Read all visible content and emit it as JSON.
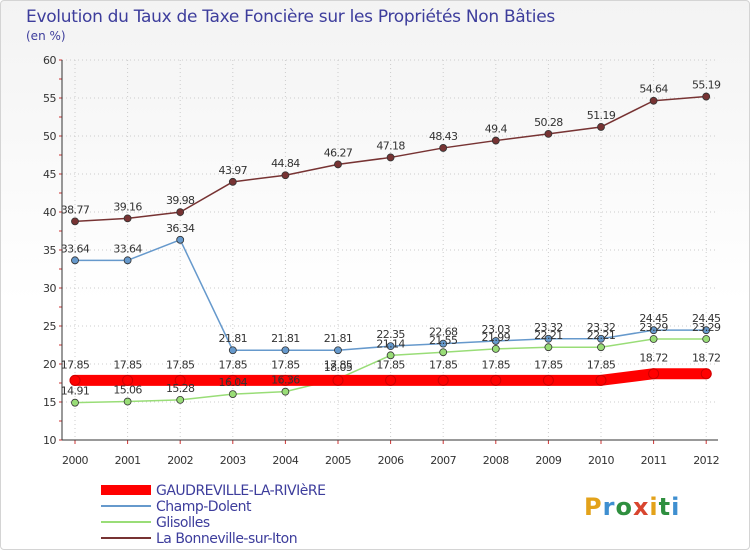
{
  "chart_data": {
    "type": "line",
    "title": "Evolution du Taux de Taxe Foncière sur les Propriétés Non Bâties",
    "ylabel": "(en %)",
    "xlabel": "",
    "ylim": [
      10,
      60
    ],
    "yticks": [
      "10",
      "15",
      "20",
      "25",
      "30",
      "35",
      "40",
      "45",
      "50",
      "55",
      "60"
    ],
    "categories": [
      "2000",
      "2001",
      "2002",
      "2003",
      "2004",
      "2005",
      "2006",
      "2007",
      "2008",
      "2009",
      "2010",
      "2011",
      "2012"
    ],
    "series": [
      {
        "name": "GAUDREVILLE-LA-RIVIèRE",
        "color": "#ff0000",
        "values": [
          17.85,
          17.85,
          17.85,
          17.85,
          17.85,
          17.85,
          17.85,
          17.85,
          17.85,
          17.85,
          17.85,
          18.72,
          18.72
        ],
        "labels": [
          "17.85",
          "17.85",
          "17.85",
          "17.85",
          "17.85",
          "17.85",
          "17.85",
          "17.85",
          "17.85",
          "17.85",
          "17.85",
          "18.72",
          "18.72"
        ]
      },
      {
        "name": "Champ-Dolent",
        "color": "#6699cc",
        "values": [
          33.64,
          33.64,
          36.34,
          21.81,
          21.81,
          21.81,
          22.35,
          22.68,
          23.03,
          23.32,
          23.32,
          24.45,
          24.45
        ],
        "labels": [
          "33.64",
          "33.64",
          "36.34",
          "21.81",
          "21.81",
          "21.81",
          "22.35",
          "22.68",
          "23.03",
          "23.32",
          "23.32",
          "24.45",
          "24.45"
        ]
      },
      {
        "name": "Glisolles",
        "color": "#99dd77",
        "values": [
          14.91,
          15.06,
          15.28,
          16.04,
          16.36,
          18.05,
          21.14,
          21.55,
          21.99,
          22.21,
          22.21,
          23.29,
          23.29
        ],
        "labels": [
          "14.91",
          "15.06",
          "15.28",
          "16.04",
          "16.36",
          "18.05",
          "21.14",
          "21.55",
          "21.99",
          "22.21",
          "22.21",
          "23.29",
          "23.29"
        ]
      },
      {
        "name": "La Bonneville-sur-Iton",
        "color": "#773333",
        "values": [
          38.77,
          39.16,
          39.98,
          43.97,
          44.84,
          46.27,
          47.18,
          48.43,
          49.4,
          50.28,
          51.19,
          54.64,
          55.19
        ],
        "labels": [
          "38.77",
          "39.16",
          "39.98",
          "43.97",
          "44.84",
          "46.27",
          "47.18",
          "48.43",
          "49.4",
          "50.28",
          "51.19",
          "54.64",
          "55.19"
        ]
      }
    ],
    "legend": "bottom-left"
  },
  "logo": {
    "letters": [
      "P",
      "r",
      "o",
      "x",
      "i",
      "t",
      "i"
    ],
    "colors": [
      "#e3a21a",
      "#3f8fd0",
      "#2f8f3f",
      "#d8452f",
      "#e3a21a",
      "#2f8f3f",
      "#3f8fd0"
    ]
  }
}
